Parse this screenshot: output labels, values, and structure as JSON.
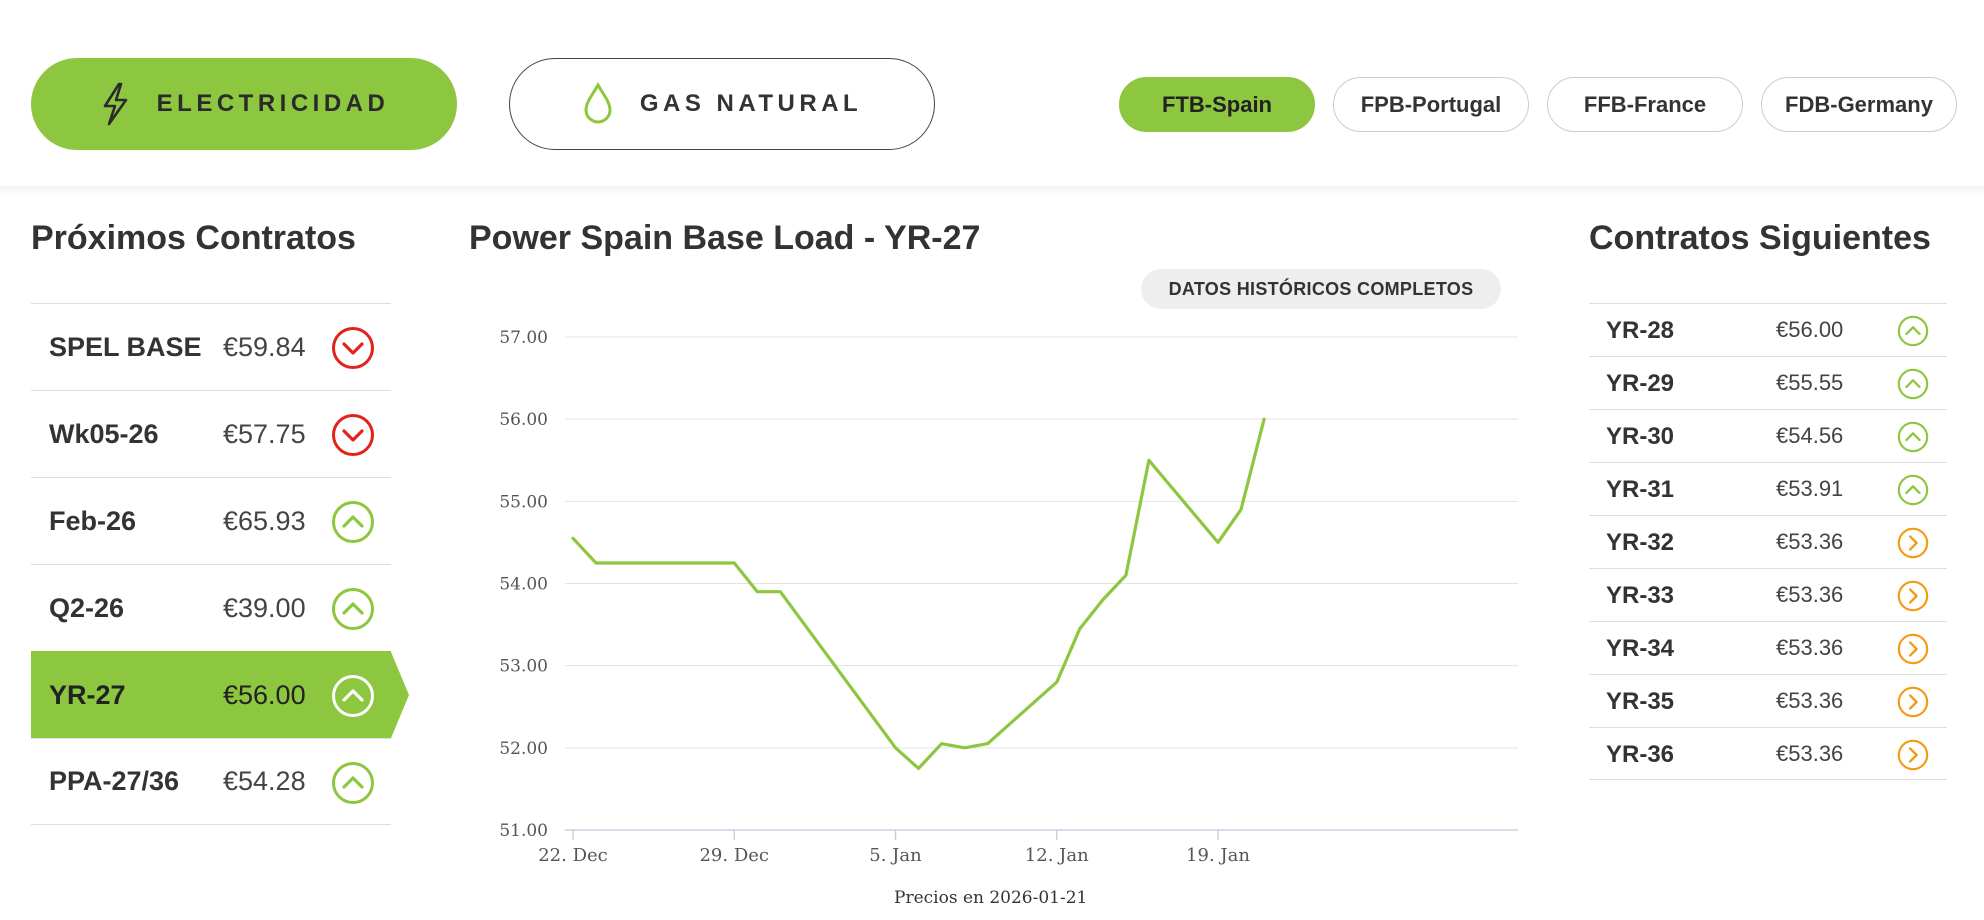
{
  "energy_tabs": [
    {
      "label": "ELECTRICIDAD",
      "icon": "lightning-icon",
      "active": true
    },
    {
      "label": "GAS NATURAL",
      "icon": "drop-icon",
      "active": false
    }
  ],
  "markets": [
    {
      "label": "FTB-Spain",
      "active": true
    },
    {
      "label": "FPB-Portugal",
      "active": false
    },
    {
      "label": "FFB-France",
      "active": false
    },
    {
      "label": "FDB-Germany",
      "active": false
    }
  ],
  "left_panel": {
    "title": "Próximos Contratos",
    "rows": [
      {
        "name": "SPEL BASE",
        "price": "€59.84",
        "trend": "down",
        "active": false
      },
      {
        "name": "Wk05-26",
        "price": "€57.75",
        "trend": "down",
        "active": false
      },
      {
        "name": "Feb-26",
        "price": "€65.93",
        "trend": "up",
        "active": false
      },
      {
        "name": "Q2-26",
        "price": "€39.00",
        "trend": "up",
        "active": false
      },
      {
        "name": "YR-27",
        "price": "€56.00",
        "trend": "up",
        "active": true
      },
      {
        "name": "PPA-27/36",
        "price": "€54.28",
        "trend": "up",
        "active": false
      }
    ]
  },
  "right_panel": {
    "title": "Contratos Siguientes",
    "rows": [
      {
        "name": "YR-28",
        "price": "€56.00",
        "trend": "up"
      },
      {
        "name": "YR-29",
        "price": "€55.55",
        "trend": "up"
      },
      {
        "name": "YR-30",
        "price": "€54.56",
        "trend": "up"
      },
      {
        "name": "YR-31",
        "price": "€53.91",
        "trend": "up"
      },
      {
        "name": "YR-32",
        "price": "€53.36",
        "trend": "flat"
      },
      {
        "name": "YR-33",
        "price": "€53.36",
        "trend": "flat"
      },
      {
        "name": "YR-34",
        "price": "€53.36",
        "trend": "flat"
      },
      {
        "name": "YR-35",
        "price": "€53.36",
        "trend": "flat"
      },
      {
        "name": "YR-36",
        "price": "€53.36",
        "trend": "flat"
      }
    ]
  },
  "chart": {
    "title": "Power Spain Base Load - YR-27",
    "history_button": "DATOS HISTÓRICOS COMPLETOS",
    "footnote": "Precios en 2026-01-21"
  },
  "colors": {
    "accent_green": "#8dc63f",
    "down_red": "#e2231a",
    "up_green": "#8dc63f",
    "flat_orange": "#f39c12"
  },
  "chart_data": {
    "type": "line",
    "title": "Power Spain Base Load - YR-27",
    "xlabel": "",
    "ylabel": "",
    "ylim": [
      51,
      57
    ],
    "y_ticks": [
      "57.00",
      "56.00",
      "55.00",
      "54.00",
      "53.00",
      "52.00",
      "51.00"
    ],
    "x_ticks": [
      {
        "label": "22. Dec",
        "x": "2025-12-22"
      },
      {
        "label": "29. Dec",
        "x": "2025-12-29"
      },
      {
        "label": "5. Jan",
        "x": "2026-01-05"
      },
      {
        "label": "12. Jan",
        "x": "2026-01-12"
      },
      {
        "label": "19. Jan",
        "x": "2026-01-19"
      }
    ],
    "grid": true,
    "series": [
      {
        "points": [
          {
            "x": "2025-12-22",
            "y": 54.55
          },
          {
            "x": "2025-12-23",
            "y": 54.25
          },
          {
            "x": "2025-12-29",
            "y": 54.25
          },
          {
            "x": "2025-12-30",
            "y": 53.9
          },
          {
            "x": "2025-12-31",
            "y": 53.9
          },
          {
            "x": "2026-01-05",
            "y": 52.0
          },
          {
            "x": "2026-01-06",
            "y": 51.75
          },
          {
            "x": "2026-01-07",
            "y": 52.05
          },
          {
            "x": "2026-01-08",
            "y": 52.0
          },
          {
            "x": "2026-01-09",
            "y": 52.05
          },
          {
            "x": "2026-01-12",
            "y": 52.8
          },
          {
            "x": "2026-01-13",
            "y": 53.45
          },
          {
            "x": "2026-01-14",
            "y": 53.8
          },
          {
            "x": "2026-01-15",
            "y": 54.1
          },
          {
            "x": "2026-01-16",
            "y": 55.5
          },
          {
            "x": "2026-01-19",
            "y": 54.5
          },
          {
            "x": "2026-01-20",
            "y": 54.9
          },
          {
            "x": "2026-01-21",
            "y": 56.0
          }
        ]
      }
    ]
  }
}
